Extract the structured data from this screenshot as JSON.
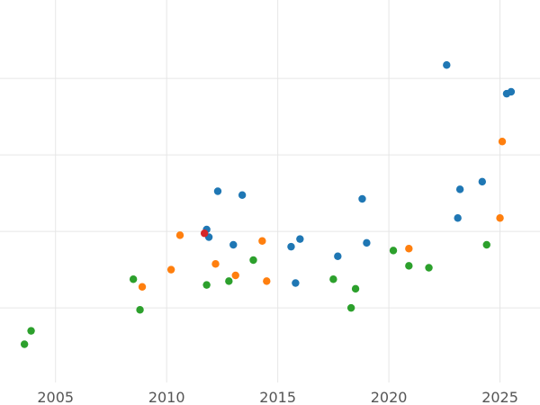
{
  "chart_data": {
    "type": "scatter",
    "title": "",
    "xlabel": "",
    "ylabel": "",
    "xlim": [
      2002.5,
      2026.8
    ],
    "ylim": [
      0,
      1
    ],
    "x_ticks": [
      2005,
      2010,
      2015,
      2020,
      2025
    ],
    "x_tick_labels": [
      "2005",
      "2010",
      "2015",
      "2020",
      "2025"
    ],
    "y_gridlines": [
      0.195,
      0.395,
      0.595,
      0.795
    ],
    "grid": true,
    "legend": "none",
    "series": [
      {
        "color": "#1f77b4",
        "points": [
          {
            "x": 2011.8,
            "y": 0.4
          },
          {
            "x": 2011.9,
            "y": 0.38
          },
          {
            "x": 2012.3,
            "y": 0.5
          },
          {
            "x": 2013,
            "y": 0.36
          },
          {
            "x": 2013.4,
            "y": 0.49
          },
          {
            "x": 2015.6,
            "y": 0.355
          },
          {
            "x": 2015.8,
            "y": 0.26
          },
          {
            "x": 2016,
            "y": 0.375
          },
          {
            "x": 2017.7,
            "y": 0.33
          },
          {
            "x": 2018.8,
            "y": 0.48
          },
          {
            "x": 2019,
            "y": 0.365
          },
          {
            "x": 2022.6,
            "y": 0.83
          },
          {
            "x": 2023.1,
            "y": 0.43
          },
          {
            "x": 2023.2,
            "y": 0.505
          },
          {
            "x": 2024.2,
            "y": 0.525
          },
          {
            "x": 2025.3,
            "y": 0.755
          },
          {
            "x": 2025.5,
            "y": 0.76
          }
        ]
      },
      {
        "color": "#ff7f0e",
        "points": [
          {
            "x": 2008.9,
            "y": 0.25
          },
          {
            "x": 2010.2,
            "y": 0.295
          },
          {
            "x": 2010.6,
            "y": 0.385
          },
          {
            "x": 2012.2,
            "y": 0.31
          },
          {
            "x": 2013.1,
            "y": 0.28
          },
          {
            "x": 2014.3,
            "y": 0.37
          },
          {
            "x": 2014.5,
            "y": 0.265
          },
          {
            "x": 2020.9,
            "y": 0.35
          },
          {
            "x": 2025,
            "y": 0.43
          },
          {
            "x": 2025.1,
            "y": 0.63
          }
        ]
      },
      {
        "color": "#2ca02c",
        "points": [
          {
            "x": 2003.6,
            "y": 0.1
          },
          {
            "x": 2003.9,
            "y": 0.135
          },
          {
            "x": 2008.5,
            "y": 0.27
          },
          {
            "x": 2008.8,
            "y": 0.19
          },
          {
            "x": 2011.8,
            "y": 0.255
          },
          {
            "x": 2012.8,
            "y": 0.265
          },
          {
            "x": 2013.9,
            "y": 0.32
          },
          {
            "x": 2017.5,
            "y": 0.27
          },
          {
            "x": 2018.3,
            "y": 0.195
          },
          {
            "x": 2018.5,
            "y": 0.245
          },
          {
            "x": 2020.2,
            "y": 0.345
          },
          {
            "x": 2020.9,
            "y": 0.305
          },
          {
            "x": 2021.8,
            "y": 0.3
          },
          {
            "x": 2024.4,
            "y": 0.36
          }
        ]
      },
      {
        "color": "#d62728",
        "points": [
          {
            "x": 2011.7,
            "y": 0.39
          }
        ]
      }
    ]
  }
}
